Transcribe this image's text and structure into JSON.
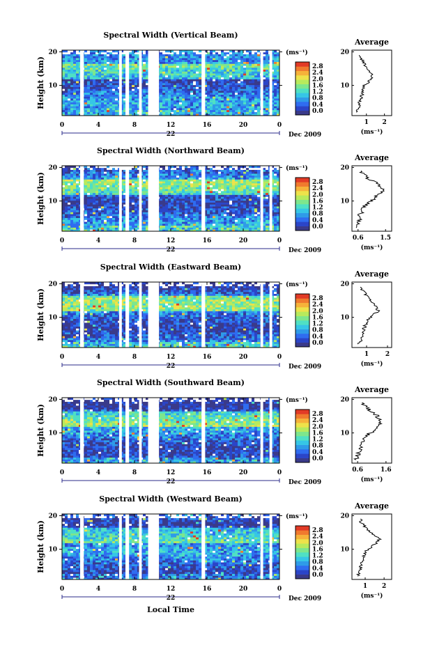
{
  "figure": {
    "date_label": "Dec 2009",
    "day_label": "22",
    "bottom_xlabel": "Local Time",
    "ylabel": "Height (km)",
    "cbar_unit": "(ms⁻¹)",
    "avg_title": "Average",
    "avg_xlabel": "(ms⁻¹)",
    "colors": {
      "scale": [
        "#3a3a8a",
        "#2b45c8",
        "#2f6cf0",
        "#2f9be8",
        "#36c6e6",
        "#4fe0c4",
        "#7ee68c",
        "#b8ea5c",
        "#eee24a",
        "#f6b23a",
        "#f07a2e",
        "#e23a26"
      ],
      "gap": "#ffffff"
    }
  },
  "chart_data": [
    {
      "type": "heatmap",
      "title": "Spectral Width (Vertical Beam)",
      "xlabel": "Local Time",
      "ylabel": "Height (km)",
      "x_ticks": [
        "0",
        "4",
        "8",
        "12",
        "16",
        "20",
        "0"
      ],
      "xlim": [
        0,
        24
      ],
      "y_ticks": [
        "20",
        "10"
      ],
      "ylim": [
        1,
        20.5
      ],
      "colorbar": {
        "label": "(ms⁻¹)",
        "ticks": [
          "2.8",
          "2.4",
          "2.0",
          "1.6",
          "1.2",
          "0.8",
          "0.4",
          "0.0"
        ],
        "range": [
          0,
          2.8
        ]
      },
      "data_gaps_hours": [
        [
          2.0,
          2.4
        ],
        [
          6.3,
          6.6
        ],
        [
          7.0,
          7.4
        ],
        [
          8.5,
          8.8
        ],
        [
          9.5,
          10.7
        ],
        [
          15.4,
          15.8
        ],
        [
          21.9,
          22.2
        ],
        [
          22.9,
          23.2
        ]
      ],
      "z_description": "Spectral width vs local time and height",
      "average_profile": {
        "title": "Average",
        "xlabel": "(ms⁻¹)",
        "x_ticks": [
          "1",
          "2"
        ],
        "xlim": [
          0.2,
          2.4
        ],
        "y_ticks": [
          "20",
          "10"
        ],
        "ylim": [
          1,
          20.5
        ],
        "height_km": [
          2,
          3,
          4,
          5,
          6,
          7,
          8,
          9,
          10,
          11,
          12,
          13,
          14,
          15,
          16,
          17,
          18,
          19
        ],
        "values": [
          0.45,
          0.55,
          0.6,
          0.62,
          0.7,
          0.75,
          0.8,
          0.82,
          0.9,
          1.1,
          1.25,
          1.35,
          1.2,
          1.1,
          0.95,
          0.85,
          0.7,
          0.6
        ]
      }
    },
    {
      "type": "heatmap",
      "title": "Spectral Width (Northward Beam)",
      "xlabel": "Local Time",
      "ylabel": "Height (km)",
      "x_ticks": [
        "0",
        "4",
        "8",
        "12",
        "16",
        "20",
        "0"
      ],
      "xlim": [
        0,
        24
      ],
      "y_ticks": [
        "20",
        "10"
      ],
      "ylim": [
        1,
        20.5
      ],
      "colorbar": {
        "label": "(ms⁻¹)",
        "ticks": [
          "2.8",
          "2.4",
          "2.0",
          "1.6",
          "1.2",
          "0.8",
          "0.4",
          "0.0"
        ],
        "range": [
          0,
          2.8
        ]
      },
      "data_gaps_hours": [
        [
          2.0,
          2.4
        ],
        [
          6.3,
          6.6
        ],
        [
          7.0,
          7.4
        ],
        [
          8.5,
          8.8
        ],
        [
          9.5,
          10.7
        ],
        [
          15.4,
          15.8
        ],
        [
          21.9,
          22.2
        ],
        [
          22.9,
          23.2
        ]
      ],
      "z_description": "Spectral width vs local time and height",
      "average_profile": {
        "title": "Average",
        "xlabel": "(ms⁻¹)",
        "x_ticks": [
          "0.6",
          "1.5"
        ],
        "xlim": [
          0.4,
          1.7
        ],
        "y_ticks": [
          "20",
          "10"
        ],
        "ylim": [
          1,
          20.5
        ],
        "height_km": [
          2,
          3,
          4,
          5,
          6,
          7,
          8,
          9,
          10,
          11,
          12,
          13,
          14,
          15,
          16,
          17,
          18,
          19
        ],
        "values": [
          0.55,
          0.6,
          0.65,
          0.7,
          0.68,
          0.72,
          0.75,
          0.85,
          1.0,
          1.15,
          1.3,
          1.4,
          1.35,
          1.25,
          1.05,
          0.9,
          0.75,
          0.7
        ]
      }
    },
    {
      "type": "heatmap",
      "title": "Spectral Width (Eastward Beam)",
      "xlabel": "Local Time",
      "ylabel": "Height (km)",
      "x_ticks": [
        "0",
        "4",
        "8",
        "12",
        "16",
        "20",
        "0"
      ],
      "xlim": [
        0,
        24
      ],
      "y_ticks": [
        "20",
        "10"
      ],
      "ylim": [
        1,
        20.5
      ],
      "colorbar": {
        "label": "(ms⁻¹)",
        "ticks": [
          "2.8",
          "2.4",
          "2.0",
          "1.6",
          "1.2",
          "0.8",
          "0.4",
          "0.0"
        ],
        "range": [
          0,
          2.8
        ]
      },
      "data_gaps_hours": [
        [
          2.0,
          2.4
        ],
        [
          6.3,
          6.6
        ],
        [
          7.0,
          7.4
        ],
        [
          8.5,
          8.8
        ],
        [
          9.5,
          10.7
        ],
        [
          15.4,
          15.8
        ],
        [
          21.9,
          22.2
        ],
        [
          22.9,
          23.2
        ]
      ],
      "z_description": "Spectral width vs local time and height",
      "average_profile": {
        "title": "Average",
        "xlabel": "(ms⁻¹)",
        "x_ticks": [
          "1",
          "2"
        ],
        "xlim": [
          0.3,
          2.2
        ],
        "y_ticks": [
          "20",
          "10"
        ],
        "ylim": [
          1,
          20.5
        ],
        "height_km": [
          2,
          3,
          4,
          5,
          6,
          7,
          8,
          9,
          10,
          11,
          12,
          13,
          14,
          15,
          16,
          17,
          18,
          19
        ],
        "values": [
          0.6,
          0.7,
          0.75,
          0.8,
          0.85,
          0.9,
          0.95,
          1.05,
          1.2,
          1.4,
          1.55,
          1.5,
          1.35,
          1.2,
          1.05,
          0.95,
          0.8,
          0.7
        ]
      }
    },
    {
      "type": "heatmap",
      "title": "Spectral Width (Southward Beam)",
      "xlabel": "Local Time",
      "ylabel": "Height (km)",
      "x_ticks": [
        "0",
        "4",
        "8",
        "12",
        "16",
        "20",
        "0"
      ],
      "xlim": [
        0,
        24
      ],
      "y_ticks": [
        "20",
        "10"
      ],
      "ylim": [
        1,
        20.5
      ],
      "colorbar": {
        "label": "(ms⁻¹)",
        "ticks": [
          "2.8",
          "2.4",
          "2.0",
          "1.6",
          "1.2",
          "0.8",
          "0.4",
          "0.0"
        ],
        "range": [
          0,
          2.8
        ]
      },
      "data_gaps_hours": [
        [
          2.0,
          2.4
        ],
        [
          6.3,
          6.6
        ],
        [
          7.0,
          7.4
        ],
        [
          8.5,
          8.8
        ],
        [
          9.5,
          10.7
        ],
        [
          15.4,
          15.8
        ],
        [
          21.9,
          22.2
        ],
        [
          22.9,
          23.2
        ]
      ],
      "z_description": "Spectral width vs local time and height",
      "average_profile": {
        "title": "Average",
        "xlabel": "(ms⁻¹)",
        "x_ticks": [
          "0.6",
          "1.6"
        ],
        "xlim": [
          0.4,
          1.8
        ],
        "y_ticks": [
          "20",
          "10"
        ],
        "ylim": [
          1,
          20.5
        ],
        "height_km": [
          2,
          3,
          4,
          5,
          6,
          7,
          8,
          9,
          10,
          11,
          12,
          13,
          14,
          15,
          16,
          17,
          18,
          19
        ],
        "values": [
          0.55,
          0.6,
          0.62,
          0.68,
          0.7,
          0.75,
          0.8,
          0.9,
          1.05,
          1.2,
          1.3,
          1.4,
          1.35,
          1.3,
          1.15,
          1.0,
          0.85,
          0.75
        ]
      }
    },
    {
      "type": "heatmap",
      "title": "Spectral Width (Westward Beam)",
      "xlabel": "Local Time",
      "ylabel": "Height (km)",
      "x_ticks": [
        "0",
        "4",
        "8",
        "12",
        "16",
        "20",
        "0"
      ],
      "xlim": [
        0,
        24
      ],
      "y_ticks": [
        "20",
        "10"
      ],
      "ylim": [
        1,
        20.5
      ],
      "colorbar": {
        "label": "(ms⁻¹)",
        "ticks": [
          "2.8",
          "2.4",
          "2.0",
          "1.6",
          "1.2",
          "0.8",
          "0.4",
          "0.0"
        ],
        "range": [
          0,
          2.8
        ]
      },
      "data_gaps_hours": [
        [
          2.0,
          2.4
        ],
        [
          6.3,
          6.6
        ],
        [
          7.0,
          7.4
        ],
        [
          8.5,
          8.8
        ],
        [
          9.5,
          10.7
        ],
        [
          15.4,
          15.8
        ],
        [
          21.9,
          22.2
        ],
        [
          22.9,
          23.2
        ]
      ],
      "z_description": "Spectral width vs local time and height",
      "average_profile": {
        "title": "Average",
        "xlabel": "(ms⁻¹)",
        "x_ticks": [
          "1",
          "2"
        ],
        "xlim": [
          0.3,
          2.4
        ],
        "y_ticks": [
          "20",
          "10"
        ],
        "ylim": [
          1,
          20.5
        ],
        "height_km": [
          2,
          3,
          4,
          5,
          6,
          7,
          8,
          9,
          10,
          11,
          12,
          13,
          14,
          15,
          16,
          17,
          18,
          19
        ],
        "values": [
          0.6,
          0.7,
          0.72,
          0.78,
          0.8,
          0.85,
          0.9,
          1.0,
          1.15,
          1.4,
          1.6,
          1.75,
          1.55,
          1.3,
          1.1,
          0.95,
          0.8,
          0.75
        ]
      }
    }
  ]
}
